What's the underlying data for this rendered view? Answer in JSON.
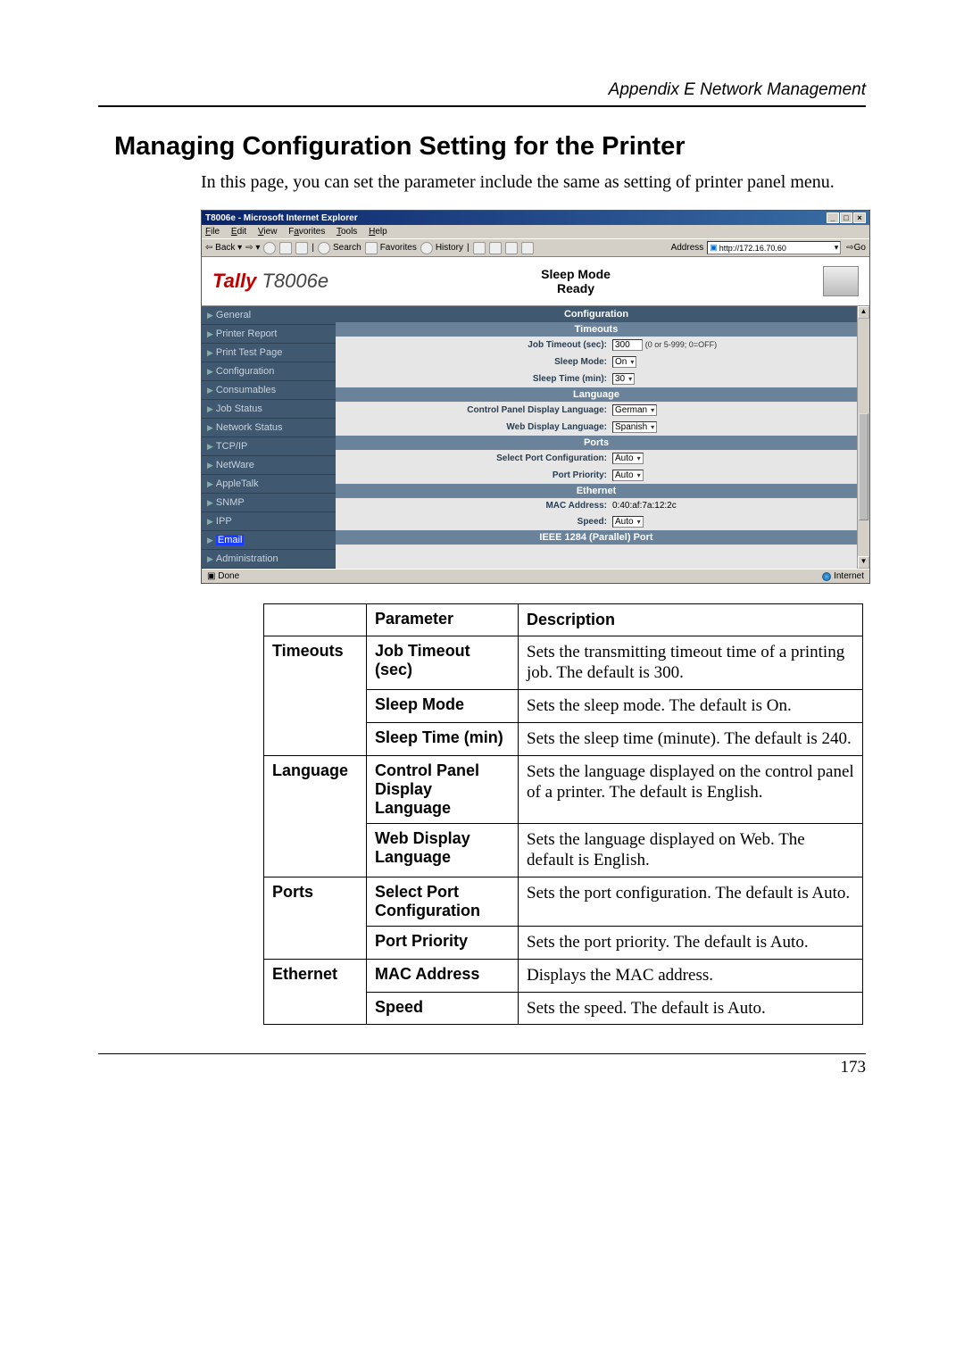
{
  "header": {
    "appendix": "Appendix E Network Management"
  },
  "title": "Managing Configuration Setting for the Printer",
  "intro": "In this page, you can set the parameter include the same as setting of printer panel menu.",
  "browser": {
    "title": "T8006e - Microsoft Internet Explorer",
    "menu": {
      "file": "File",
      "edit": "Edit",
      "view": "View",
      "favorites": "Favorites",
      "tools": "Tools",
      "help": "Help"
    },
    "toolbar": {
      "back": "Back",
      "search": "Search",
      "favorites": "Favorites",
      "history": "History"
    },
    "address_label": "Address",
    "address_value": "http://172.16.70.60",
    "go": "Go",
    "brand": {
      "tally": "Tally",
      "model": "T8006e"
    },
    "status": {
      "line1": "Sleep Mode",
      "line2": "Ready"
    },
    "sidebar": {
      "items": [
        "General",
        "Printer Report",
        "Print Test Page",
        "Configuration",
        "Consumables",
        "Job Status",
        "Network Status",
        "TCP/IP",
        "NetWare",
        "AppleTalk",
        "SNMP",
        "IPP",
        "Email",
        "Administration"
      ]
    },
    "config": {
      "heading": "Configuration",
      "sections": {
        "timeouts": {
          "title": "Timeouts",
          "job_timeout_label": "Job Timeout (sec):",
          "job_timeout_value": "300",
          "job_timeout_hint": "(0 or 5-999; 0=OFF)",
          "sleep_mode_label": "Sleep Mode:",
          "sleep_mode_value": "On",
          "sleep_time_label": "Sleep Time (min):",
          "sleep_time_value": "30"
        },
        "language": {
          "title": "Language",
          "cp_label": "Control Panel Display Language:",
          "cp_value": "German",
          "web_label": "Web Display Language:",
          "web_value": "Spanish"
        },
        "ports": {
          "title": "Ports",
          "select_port_label": "Select Port Configuration:",
          "select_port_value": "Auto",
          "priority_label": "Port Priority:",
          "priority_value": "Auto"
        },
        "ethernet": {
          "title": "Ethernet",
          "mac_label": "MAC Address:",
          "mac_value": "0:40:af:7a:12:2c",
          "speed_label": "Speed:",
          "speed_value": "Auto"
        },
        "ieee": {
          "title": "IEEE 1284 (Parallel) Port"
        }
      }
    },
    "status_done": "Done",
    "zone": "Internet"
  },
  "table": {
    "head": {
      "parameter": "Parameter",
      "description": "Description"
    },
    "rows": [
      {
        "cat": "Timeouts",
        "param": "Job Timeout (sec)",
        "desc": "Sets the transmitting timeout time of a printing job. The default is 300."
      },
      {
        "cat": "",
        "param": "Sleep Mode",
        "desc": "Sets the sleep mode. The default is On."
      },
      {
        "cat": "",
        "param": "Sleep Time (min)",
        "desc": "Sets the sleep time (minute). The default is 240."
      },
      {
        "cat": "Language",
        "param": "Control Panel Display Language",
        "desc": "Sets the language displayed on the control panel of a printer. The default is English."
      },
      {
        "cat": "",
        "param": "Web Display Language",
        "desc": "Sets the language displayed on Web. The default is English."
      },
      {
        "cat": "Ports",
        "param": "Select Port Configuration",
        "desc": "Sets the port configuration. The default is Auto."
      },
      {
        "cat": "",
        "param": "Port Priority",
        "desc": "Sets the port priority. The default is Auto."
      },
      {
        "cat": "Ethernet",
        "param": "MAC Address",
        "desc": "Displays the MAC address."
      },
      {
        "cat": "",
        "param": "Speed",
        "desc": "Sets the speed. The default is Auto."
      }
    ]
  },
  "page_number": "173"
}
